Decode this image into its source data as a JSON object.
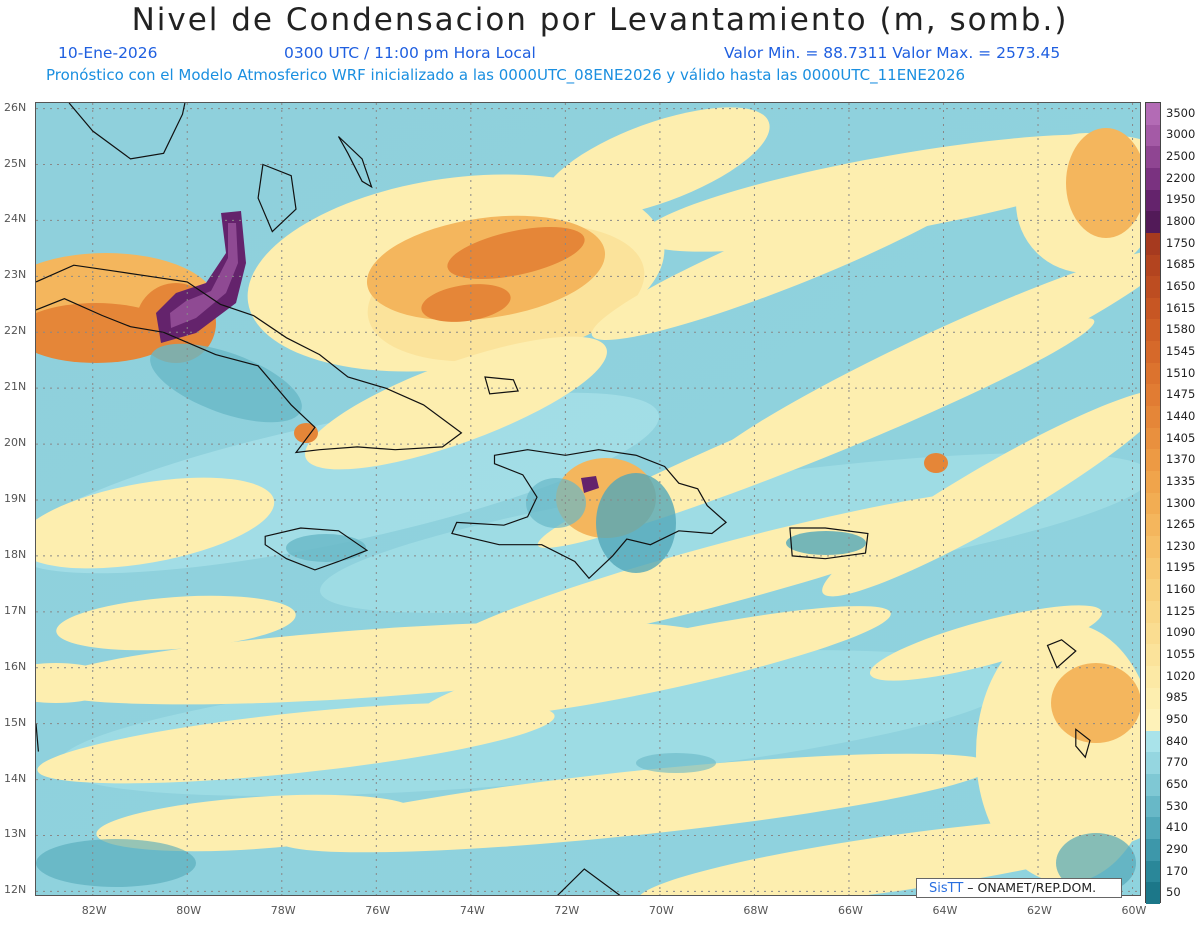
{
  "header": {
    "title": "Nivel de Condensacion por Levantamiento (m, somb.)",
    "date": "10-Ene-2026",
    "time": "0300 UTC / 11:00 pm Hora Local",
    "min_max": "Valor Min. = 88.7311   Valor Max. = 2573.45",
    "forecast_line": "Pronóstico con el Modelo Atmosferico WRF inicializado a las 0000UTC_08ENE2026 y válido hasta las  0000UTC_11ENE2026"
  },
  "map": {
    "lon_range": [
      -83.2,
      -59.8
    ],
    "lat_range": [
      11.9,
      26.1
    ],
    "lat_ticks": [
      "26N",
      "25N",
      "24N",
      "23N",
      "22N",
      "21N",
      "20N",
      "19N",
      "18N",
      "17N",
      "16N",
      "15N",
      "14N",
      "13N",
      "12N"
    ],
    "lon_ticks": [
      "82W",
      "80W",
      "78W",
      "76W",
      "74W",
      "72W",
      "70W",
      "68W",
      "66W",
      "64W",
      "62W",
      "60W"
    ]
  },
  "colorbar": {
    "levels": [
      "3500",
      "3000",
      "2500",
      "2200",
      "1950",
      "1800",
      "1750",
      "1685",
      "1650",
      "1615",
      "1580",
      "1545",
      "1510",
      "1475",
      "1440",
      "1405",
      "1370",
      "1335",
      "1300",
      "1265",
      "1230",
      "1195",
      "1160",
      "1125",
      "1090",
      "1055",
      "1020",
      "985",
      "950",
      "840",
      "770",
      "650",
      "530",
      "410",
      "290",
      "170",
      "50"
    ],
    "colors": [
      "#b36bb5",
      "#a45aa6",
      "#8f4592",
      "#7a3280",
      "#64236c",
      "#521a58",
      "#a63a1f",
      "#b3441f",
      "#bd4d21",
      "#c75623",
      "#cf6026",
      "#d6692a",
      "#dc732e",
      "#e17c33",
      "#e58638",
      "#e9903e",
      "#ed9a44",
      "#f0a44b",
      "#f2ad53",
      "#f4b65d",
      "#f6bf67",
      "#f7c872",
      "#f8d07c",
      "#f9d787",
      "#fadd91",
      "#fbe39b",
      "#fce9a5",
      "#fdeeaf",
      "#fef2b9",
      "#a9e3ea",
      "#95d6e0",
      "#7fc8d4",
      "#68b8c7",
      "#52a8b9",
      "#3d97aa",
      "#2a8799",
      "#1c7789"
    ]
  },
  "credit": {
    "brand": "SisTT",
    "text": "– ONAMET/REP.DOM."
  }
}
